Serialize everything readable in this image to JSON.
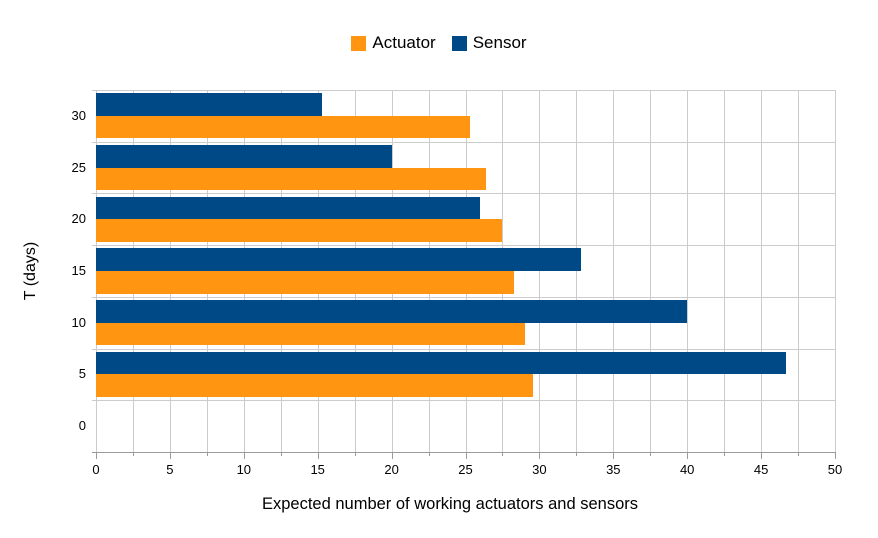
{
  "chart_data": {
    "type": "bar",
    "orientation": "horizontal",
    "title": "",
    "xlabel": "Expected number of working actuators and sensors",
    "ylabel": "T (days)",
    "categories": [
      "30",
      "25",
      "20",
      "15",
      "10",
      "5",
      "0"
    ],
    "series": [
      {
        "name": "Actuator",
        "color": "#FF9511",
        "values": [
          25.3,
          26.4,
          27.5,
          28.3,
          29.0,
          29.6,
          0
        ]
      },
      {
        "name": "Sensor",
        "color": "#004987",
        "values": [
          15.3,
          20.0,
          26.0,
          32.8,
          40.0,
          46.7,
          0
        ]
      }
    ],
    "xlim": [
      0,
      50
    ],
    "xticks": [
      0,
      5,
      10,
      15,
      20,
      25,
      30,
      35,
      40,
      45,
      50
    ],
    "minor_tick_step": 2.5,
    "grid": true,
    "legend_position": "top",
    "colors": {
      "gridline": "#cccccc",
      "axis": "#9a9a9a",
      "text": "#000000",
      "background": "#ffffff"
    }
  }
}
